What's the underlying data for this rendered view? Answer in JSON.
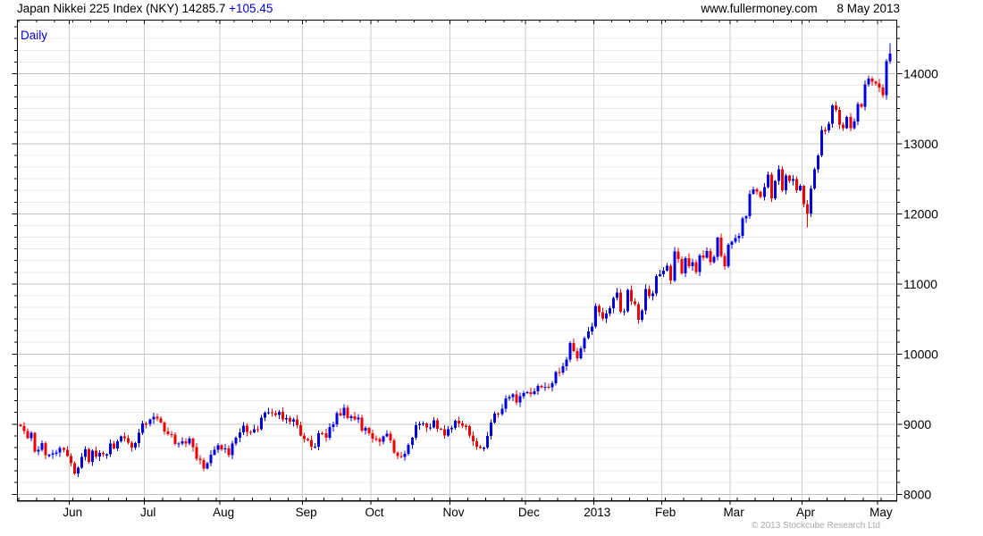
{
  "header": {
    "title_main": "Japan Nikkei 225 Index (NKY) 14285.7",
    "title_change": "+105.45",
    "site": "www.fullermoney.com",
    "date": "8 May 2013"
  },
  "chart_label": "Daily",
  "footer": {
    "copyright": "© 2013 Stockcube Research Ltd"
  },
  "colors": {
    "up": "#0000dd",
    "down": "#ee0000",
    "grid_major": "#c0c0c0",
    "grid_minor": "#ececec",
    "grid_month": "#cccccc",
    "axis": "#000000",
    "accent_blue": "#0000cc",
    "copyright_gray": "#a9a9a9",
    "background": "#ffffff"
  },
  "chart_data": {
    "type": "candlestick",
    "title": "Japan Nikkei 225 Index (NKY)",
    "interval": "Daily",
    "last_price": 14285.7,
    "change": 105.45,
    "date": "8 May 2013",
    "ylabel": "",
    "xlabel": "",
    "y_ticks": [
      8000,
      9000,
      10000,
      11000,
      12000,
      13000,
      14000
    ],
    "y_range": [
      7914,
      14770
    ],
    "minor_per_major": 6,
    "months": [
      {
        "label": "Jun",
        "index": 14
      },
      {
        "label": "Jul",
        "index": 35
      },
      {
        "label": "Aug",
        "index": 56
      },
      {
        "label": "Sep",
        "index": 79
      },
      {
        "label": "Oct",
        "index": 98
      },
      {
        "label": "Nov",
        "index": 120
      },
      {
        "label": "Dec",
        "index": 141
      },
      {
        "label": "2013",
        "index": 160
      },
      {
        "label": "Feb",
        "index": 179
      },
      {
        "label": "Mar",
        "index": 198
      },
      {
        "label": "Apr",
        "index": 218
      },
      {
        "label": "May",
        "index": 239
      }
    ],
    "open_first": 8994,
    "closes": [
      8973,
      8901,
      8801,
      8877,
      8611,
      8633,
      8729,
      8556,
      8563,
      8580,
      8594,
      8657,
      8633,
      8543,
      8440,
      8295,
      8382,
      8533,
      8640,
      8459,
      8624,
      8537,
      8587,
      8568,
      8569,
      8721,
      8655,
      8752,
      8824,
      8798,
      8734,
      8663,
      8730,
      8874,
      9007,
      9003,
      9066,
      9104,
      9079,
      9021,
      8896,
      8857,
      8851,
      8720,
      8724,
      8755,
      8726,
      8795,
      8670,
      8508,
      8488,
      8366,
      8443,
      8567,
      8635,
      8695,
      8641,
      8653,
      8555,
      8726,
      8803,
      8881,
      8978,
      8891,
      8885,
      8929,
      8925,
      9093,
      9163,
      9171,
      9157,
      9131,
      9178,
      9070,
      9085,
      9033,
      9069,
      8983,
      8840,
      8784,
      8776,
      8680,
      8681,
      8872,
      8870,
      8807,
      8959,
      8995,
      9159,
      9123,
      9232,
      9086,
      9110,
      9069,
      9091,
      8906,
      8949,
      8870,
      8796,
      8786,
      8746,
      8824,
      8863,
      8769,
      8596,
      8546,
      8534,
      8578,
      8701,
      8806,
      8983,
      9003,
      9011,
      8954,
      8955,
      9055,
      8933,
      8929,
      8841,
      8928,
      8947,
      9051,
      9008,
      8975,
      8972,
      8837,
      8757,
      8676,
      8661,
      8664,
      8830,
      9024,
      9153,
      9142,
      9223,
      9367,
      9388,
      9423,
      9309,
      9401,
      9446,
      9458,
      9432,
      9469,
      9545,
      9527,
      9533,
      9525,
      9581,
      9743,
      9738,
      9828,
      9923,
      10160,
      10039,
      9940,
      10080,
      10230,
      10322,
      10395,
      10688,
      10599,
      10508,
      10578,
      10652,
      10801,
      10879,
      10600,
      10609,
      10913,
      10747,
      10709,
      10486,
      10620,
      10926,
      10824,
      10866,
      11114,
      11139,
      11191,
      11260,
      11046,
      11463,
      11357,
      11154,
      11369,
      11251,
      11307,
      11173,
      11408,
      11372,
      11468,
      11309,
      11385,
      11662,
      11398,
      11253,
      11559,
      11606,
      11652,
      11683,
      11932,
      11968,
      12284,
      12349,
      12314,
      12239,
      12381,
      12561,
      12221,
      12468,
      12635,
      12338,
      12546,
      12471,
      12494,
      12335,
      12398,
      12136,
      12003,
      12362,
      12634,
      12834,
      13193,
      13192,
      13288,
      13549,
      13485,
      13275,
      13221,
      13382,
      13220,
      13316,
      13568,
      13529,
      13843,
      13926,
      13884,
      13860,
      13799,
      13694,
      14180,
      14285.7
    ],
    "wick_overrides": {
      "219": {
        "low": 11805
      },
      "242": {
        "high": 14430
      }
    }
  }
}
